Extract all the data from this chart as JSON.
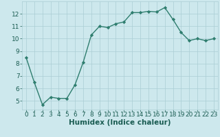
{
  "xlabel": "Humidex (Indice chaleur)",
  "x": [
    0,
    1,
    2,
    3,
    4,
    5,
    6,
    7,
    8,
    9,
    10,
    11,
    12,
    13,
    14,
    15,
    16,
    17,
    18,
    19,
    20,
    21,
    22,
    23
  ],
  "y": [
    8.5,
    6.5,
    4.7,
    5.3,
    5.2,
    5.2,
    6.3,
    8.1,
    10.3,
    11.0,
    10.9,
    11.2,
    11.35,
    12.1,
    12.1,
    12.2,
    12.15,
    12.5,
    11.55,
    10.5,
    9.85,
    10.0,
    9.85,
    10.0
  ],
  "line_color": "#2e7d6e",
  "marker": "D",
  "marker_size": 2.2,
  "line_width": 1.0,
  "bg_color": "#cde8ed",
  "grid_color": "#aacdd4",
  "axis_label_color": "#1a5c52",
  "tick_label_color": "#1a5c52",
  "xlim": [
    -0.5,
    23.5
  ],
  "ylim": [
    4.3,
    13.0
  ],
  "yticks": [
    5,
    6,
    7,
    8,
    9,
    10,
    11,
    12
  ],
  "xticks": [
    0,
    1,
    2,
    3,
    4,
    5,
    6,
    7,
    8,
    9,
    10,
    11,
    12,
    13,
    14,
    15,
    16,
    17,
    18,
    19,
    20,
    21,
    22,
    23
  ],
  "xlabel_fontsize": 7.5,
  "tick_fontsize": 6.5
}
